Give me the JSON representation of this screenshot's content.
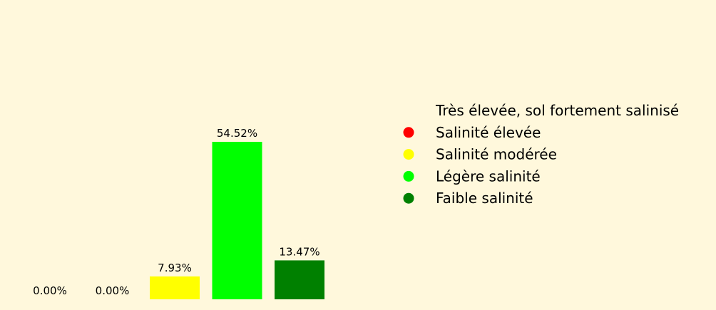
{
  "chart_data": {
    "type": "bar",
    "categories": [
      "Très élevée, sol fortement salinisé",
      "Salinité élevée",
      "Salinité modérée",
      "Légère salinité",
      "Faible salinité"
    ],
    "values": [
      0.0,
      0.0,
      7.93,
      54.52,
      13.47
    ],
    "data_labels": [
      "0.00%",
      "0.00%",
      "7.93%",
      "54.52%",
      "13.47%"
    ],
    "colors": [
      "#ff0000",
      "#ffff00",
      "#ffff00",
      "#00ff00",
      "#008000"
    ],
    "legend": {
      "placement": "right",
      "entries": [
        {
          "label": "Très élevée, sol fortement salinisé",
          "color": null
        },
        {
          "label": "Salinité élevée",
          "color": "#ff0000"
        },
        {
          "label": "Salinité modérée",
          "color": "#ffff00"
        },
        {
          "label": "Légère salinité",
          "color": "#00ff00"
        },
        {
          "label": "Faible salinité",
          "color": "#008000"
        }
      ]
    },
    "ylim": [
      0,
      100
    ],
    "grid": false,
    "background": "#fff8dc"
  }
}
